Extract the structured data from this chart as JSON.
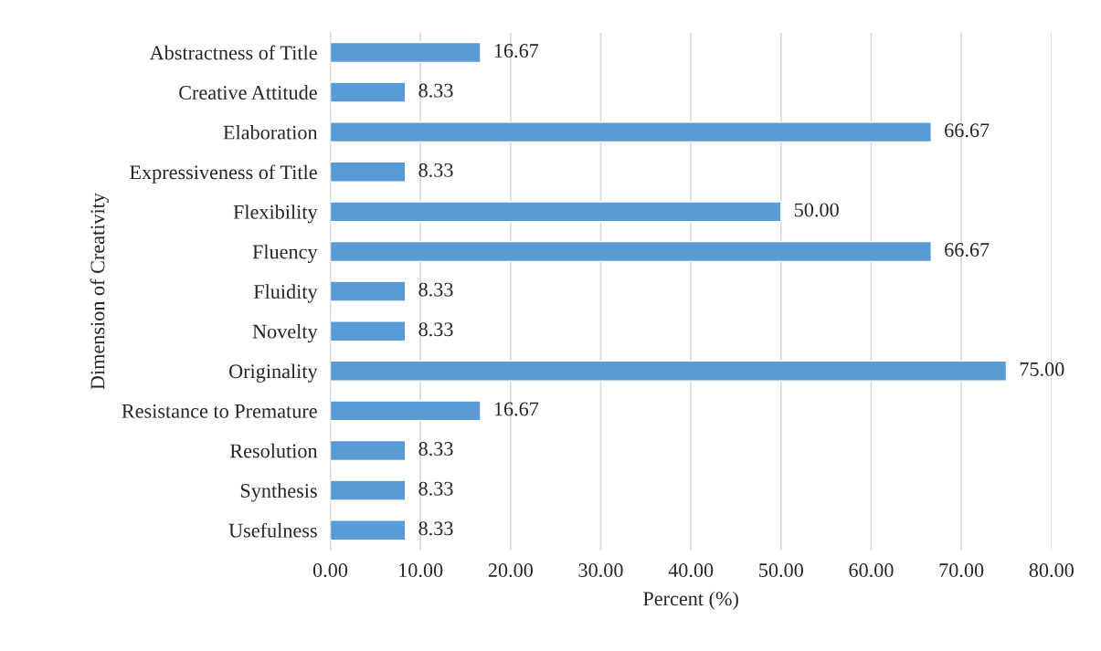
{
  "chart_data": {
    "type": "bar",
    "orientation": "horizontal",
    "xlabel": "Percent (%)",
    "ylabel": "Dimension of Creativity",
    "categories": [
      "Abstractness of Title",
      "Creative Attitude",
      "Elaboration",
      "Expressiveness of Title",
      "Flexibility",
      "Fluency",
      "Fluidity",
      "Novelty",
      "Originality",
      "Resistance to Premature",
      "Resolution",
      "Synthesis",
      "Usefulness"
    ],
    "values": [
      16.67,
      8.33,
      66.67,
      8.33,
      50.0,
      66.67,
      8.33,
      8.33,
      75.0,
      16.67,
      8.33,
      8.33,
      8.33
    ],
    "value_labels": [
      "16.67",
      "8.33",
      "66.67",
      "8.33",
      "50.00",
      "66.67",
      "8.33",
      "8.33",
      "75.00",
      "16.67",
      "8.33",
      "8.33",
      "8.33"
    ],
    "color": "#5b9bd5",
    "xlim": [
      0,
      80
    ],
    "xticks": [
      {
        "value": 0,
        "label": "0.00"
      },
      {
        "value": 10,
        "label": "10.00"
      },
      {
        "value": 20,
        "label": "20.00"
      },
      {
        "value": 30,
        "label": "30.00"
      },
      {
        "value": 40,
        "label": "40.00"
      },
      {
        "value": 50,
        "label": "50.00"
      },
      {
        "value": 60,
        "label": "60.00"
      },
      {
        "value": 70,
        "label": "70.00"
      },
      {
        "value": 80,
        "label": "80.00"
      }
    ],
    "grid": "x"
  }
}
